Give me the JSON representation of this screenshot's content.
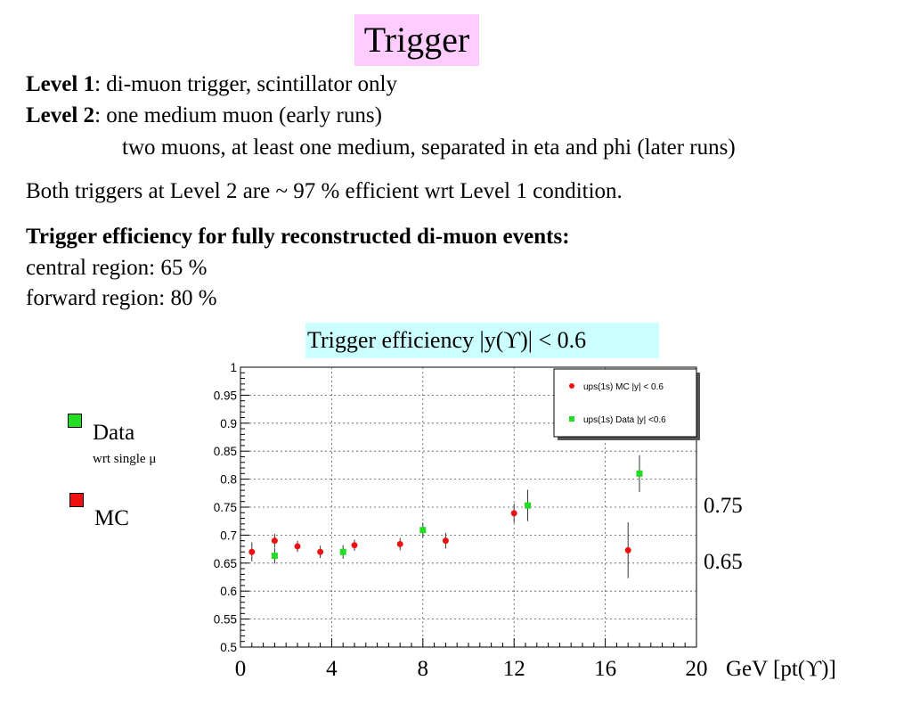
{
  "slide": {
    "title": "Trigger",
    "level1": {
      "label": "Level 1",
      "text": ": di-muon trigger, scintillator only"
    },
    "level2": {
      "label": "Level 2",
      "text": ": one medium muon (early runs)",
      "continuation": "two muons, at least one medium, separated in eta and phi (later runs)"
    },
    "both_triggers": "Both triggers at Level 2 are  ~ 97 %  efficient wrt Level 1 condition.",
    "efficiency_heading": "Trigger efficiency for fully reconstructed di-muon events:",
    "central": "central region: 65 %",
    "forward": "forward region: 80 %"
  },
  "side_legend": {
    "data_label": "Data",
    "data_sub": "wrt single μ",
    "mc_label": "MC",
    "data_color": "#22dd22",
    "mc_color": "#ee1111"
  },
  "chart_data": {
    "type": "scatter",
    "title": "Trigger efficiency   |y(ϒ)| < 0.6",
    "xlabel": "GeV [pt(ϒ)]",
    "xlim": [
      0,
      20
    ],
    "ylim": [
      0.5,
      1
    ],
    "x_tick_labels": [
      "0",
      "4",
      "8",
      "12",
      "16",
      "20"
    ],
    "y_tick_labels": [
      "0.5",
      "0.55",
      "0.6",
      "0.65",
      "0.7",
      "0.75",
      "0.8",
      "0.85",
      "0.9",
      "0.95",
      "1"
    ],
    "grid": true,
    "legend_position": "top-right",
    "reference_lines": [
      {
        "label": "0.75",
        "y": 0.75
      },
      {
        "label": "0.65",
        "y": 0.65
      }
    ],
    "series": [
      {
        "name": "ups(1s) MC   |y| < 0.6",
        "color": "#ee1111",
        "points": [
          {
            "x": 0.5,
            "y": 0.67,
            "err": 0.017
          },
          {
            "x": 1.5,
            "y": 0.69,
            "err": 0.012
          },
          {
            "x": 2.5,
            "y": 0.68,
            "err": 0.01
          },
          {
            "x": 3.5,
            "y": 0.67,
            "err": 0.011
          },
          {
            "x": 5.0,
            "y": 0.682,
            "err": 0.01
          },
          {
            "x": 7.0,
            "y": 0.684,
            "err": 0.011
          },
          {
            "x": 9.0,
            "y": 0.69,
            "err": 0.014
          },
          {
            "x": 12.0,
            "y": 0.739,
            "err": 0.017
          },
          {
            "x": 17.0,
            "y": 0.673,
            "err": 0.05
          }
        ]
      },
      {
        "name": "ups(1s) Data |y| <0.6",
        "color": "#22dd22",
        "points": [
          {
            "x": 1.5,
            "y": 0.663,
            "err": 0.014
          },
          {
            "x": 4.5,
            "y": 0.67,
            "err": 0.012
          },
          {
            "x": 8.0,
            "y": 0.709,
            "err": 0.013
          },
          {
            "x": 12.6,
            "y": 0.753,
            "err": 0.028
          },
          {
            "x": 17.5,
            "y": 0.81,
            "err": 0.033
          }
        ]
      }
    ]
  }
}
